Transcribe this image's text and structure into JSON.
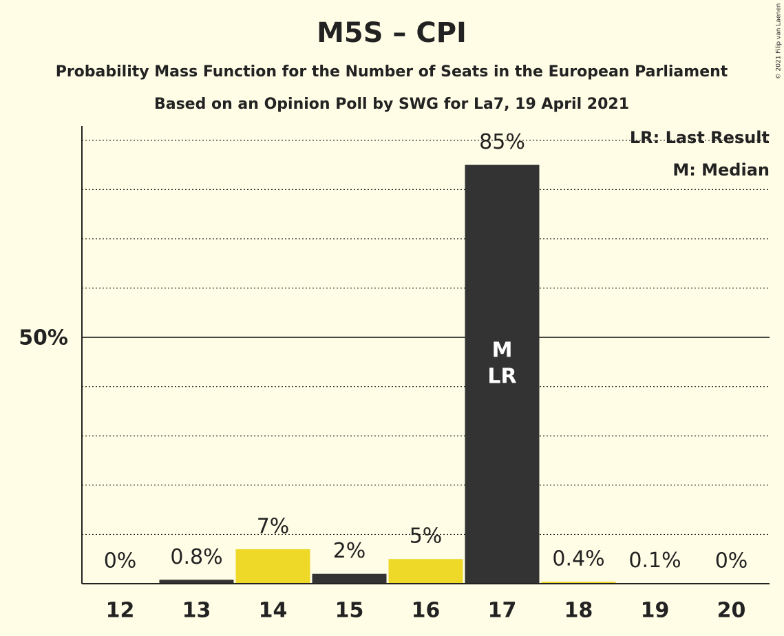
{
  "chart_data": {
    "type": "bar",
    "title": "M5S – CPI",
    "subtitle": "Probability Mass Function for the Number of Seats in the European Parliament",
    "subtitle2": "Based on an Opinion Poll by SWG for La7, 19 April 2021",
    "copyright": "© 2021 Filip van Laenen",
    "categories": [
      "12",
      "13",
      "14",
      "15",
      "16",
      "17",
      "18",
      "19",
      "20"
    ],
    "values": [
      0,
      0.8,
      7,
      2,
      5,
      85,
      0.4,
      0.1,
      0
    ],
    "value_labels": [
      "0%",
      "0.8%",
      "7%",
      "2%",
      "5%",
      "85%",
      "0.4%",
      "0.1%",
      "0%"
    ],
    "colors": [
      "#333333",
      "#333333",
      "#eed828",
      "#333333",
      "#eed828",
      "#333333",
      "#eed828",
      "#333333",
      "#eed828"
    ],
    "ylim": [
      0,
      92.9
    ],
    "yticks": [
      {
        "value": 50,
        "label": "50%"
      }
    ],
    "minor_gridlines": [
      10,
      20,
      30,
      40,
      60,
      70,
      80,
      90
    ],
    "median": "17",
    "median_marker": "M",
    "last_result": "17",
    "last_result_marker": "LR",
    "legend": [
      "LR: Last Result",
      "M: Median"
    ],
    "legend_position": "upper right"
  }
}
